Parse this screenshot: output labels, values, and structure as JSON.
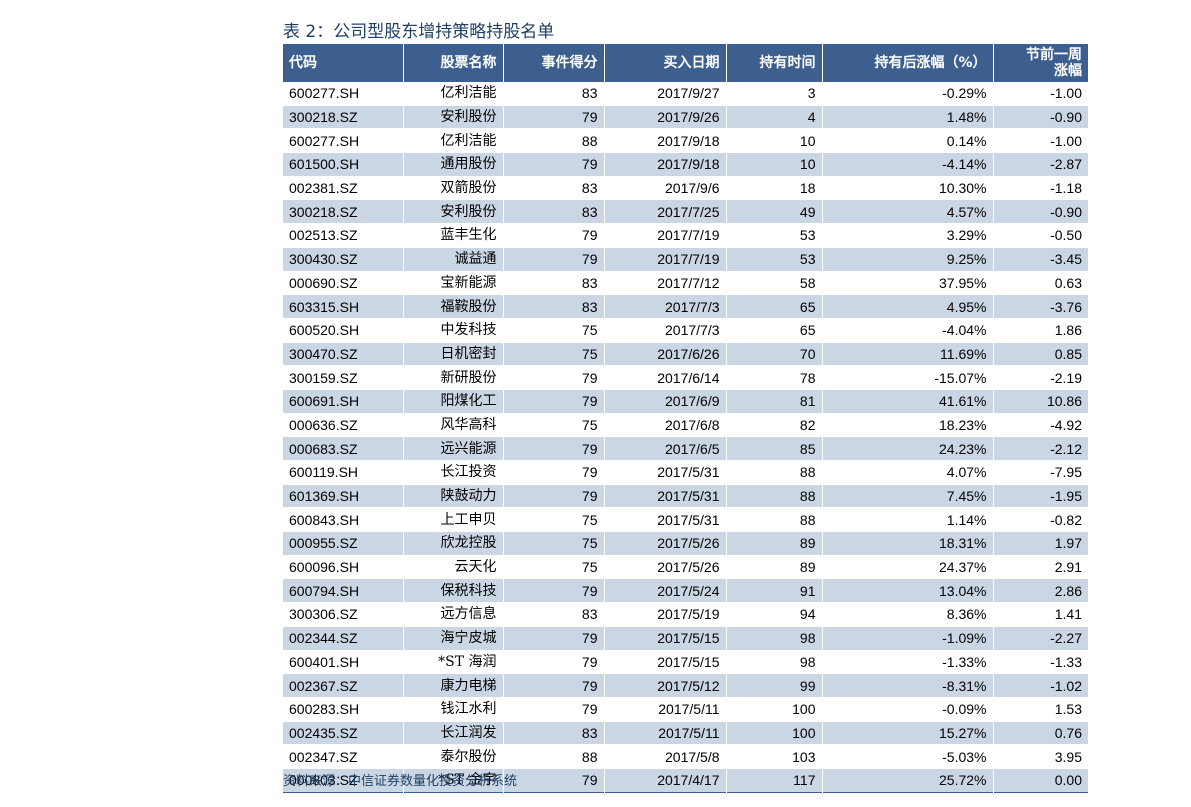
{
  "title": "表 2：公司型股东增持策略持股名单",
  "columns": {
    "code": "代码",
    "name": "股票名称",
    "score": "事件得分",
    "date": "买入日期",
    "hold": "持有时间",
    "gain": "持有后涨幅（%）",
    "prev_line1": "节前一周",
    "prev_line2": "涨幅"
  },
  "rows": [
    [
      "600277.SH",
      "亿利洁能",
      "83",
      "2017/9/27",
      "3",
      "-0.29%",
      "-1.00"
    ],
    [
      "300218.SZ",
      "安利股份",
      "79",
      "2017/9/26",
      "4",
      "1.48%",
      "-0.90"
    ],
    [
      "600277.SH",
      "亿利洁能",
      "88",
      "2017/9/18",
      "10",
      "0.14%",
      "-1.00"
    ],
    [
      "601500.SH",
      "通用股份",
      "79",
      "2017/9/18",
      "10",
      "-4.14%",
      "-2.87"
    ],
    [
      "002381.SZ",
      "双箭股份",
      "83",
      "2017/9/6",
      "18",
      "10.30%",
      "-1.18"
    ],
    [
      "300218.SZ",
      "安利股份",
      "83",
      "2017/7/25",
      "49",
      "4.57%",
      "-0.90"
    ],
    [
      "002513.SZ",
      "蓝丰生化",
      "79",
      "2017/7/19",
      "53",
      "3.29%",
      "-0.50"
    ],
    [
      "300430.SZ",
      "诚益通",
      "79",
      "2017/7/19",
      "53",
      "9.25%",
      "-3.45"
    ],
    [
      "000690.SZ",
      "宝新能源",
      "83",
      "2017/7/12",
      "58",
      "37.95%",
      "0.63"
    ],
    [
      "603315.SH",
      "福鞍股份",
      "83",
      "2017/7/3",
      "65",
      "4.95%",
      "-3.76"
    ],
    [
      "600520.SH",
      "中发科技",
      "75",
      "2017/7/3",
      "65",
      "-4.04%",
      "1.86"
    ],
    [
      "300470.SZ",
      "日机密封",
      "75",
      "2017/6/26",
      "70",
      "11.69%",
      "0.85"
    ],
    [
      "300159.SZ",
      "新研股份",
      "79",
      "2017/6/14",
      "78",
      "-15.07%",
      "-2.19"
    ],
    [
      "600691.SH",
      "阳煤化工",
      "79",
      "2017/6/9",
      "81",
      "41.61%",
      "10.86"
    ],
    [
      "000636.SZ",
      "风华高科",
      "75",
      "2017/6/8",
      "82",
      "18.23%",
      "-4.92"
    ],
    [
      "000683.SZ",
      "远兴能源",
      "79",
      "2017/6/5",
      "85",
      "24.23%",
      "-2.12"
    ],
    [
      "600119.SH",
      "长江投资",
      "79",
      "2017/5/31",
      "88",
      "4.07%",
      "-7.95"
    ],
    [
      "601369.SH",
      "陕鼓动力",
      "79",
      "2017/5/31",
      "88",
      "7.45%",
      "-1.95"
    ],
    [
      "600843.SH",
      "上工申贝",
      "75",
      "2017/5/31",
      "88",
      "1.14%",
      "-0.82"
    ],
    [
      "000955.SZ",
      "欣龙控股",
      "75",
      "2017/5/26",
      "89",
      "18.31%",
      "1.97"
    ],
    [
      "600096.SH",
      "云天化",
      "75",
      "2017/5/26",
      "89",
      "24.37%",
      "2.91"
    ],
    [
      "600794.SH",
      "保税科技",
      "79",
      "2017/5/24",
      "91",
      "13.04%",
      "2.86"
    ],
    [
      "300306.SZ",
      "远方信息",
      "83",
      "2017/5/19",
      "94",
      "8.36%",
      "1.41"
    ],
    [
      "002344.SZ",
      "海宁皮城",
      "79",
      "2017/5/15",
      "98",
      "-1.09%",
      "-2.27"
    ],
    [
      "600401.SH",
      "*ST 海润",
      "79",
      "2017/5/15",
      "98",
      "-1.33%",
      "-1.33"
    ],
    [
      "002367.SZ",
      "康力电梯",
      "79",
      "2017/5/12",
      "99",
      "-8.31%",
      "-1.02"
    ],
    [
      "600283.SH",
      "钱江水利",
      "79",
      "2017/5/11",
      "100",
      "-0.09%",
      "1.53"
    ],
    [
      "002435.SZ",
      "长江润发",
      "83",
      "2017/5/11",
      "100",
      "15.27%",
      "0.76"
    ],
    [
      "002347.SZ",
      "泰尔股份",
      "88",
      "2017/5/8",
      "103",
      "-5.03%",
      "3.95"
    ],
    [
      "000803.SZ",
      "*ST 金宇",
      "79",
      "2017/4/17",
      "117",
      "25.72%",
      "0.00"
    ]
  ],
  "source": "资料来源：中信证券数量化投资分析系统"
}
